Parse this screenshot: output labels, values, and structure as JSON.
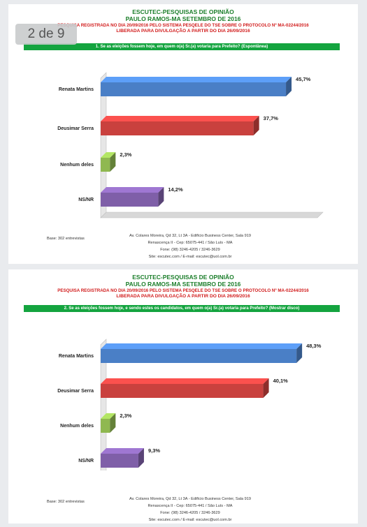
{
  "page_counter": "2 de 9",
  "panels": [
    {
      "title1": "ESCUTEC-PESQUISAS DE OPINIÃO",
      "title2": "PAULO RAMOS-MA SETEMBRO DE 2016",
      "registration": "PESQUISA REGISTRADA NO DIA 20/09/2016 PELO SISTEMA PESQELE DO TSE SOBRE O PROTOCOLO Nº MA-02244/2016",
      "release": "LIBERADA PARA DIVULGAÇÃO A PARTIR DO DIA 26/09/2016",
      "question": "1. Se as eleições fossem hoje, em quem o(a) Sr.(a) votaria para Prefeito? (Espontânea)",
      "base": "Base: 302 entrevistas",
      "address": [
        "Av. Colares Moreira, Qd 32, Lt 3A - Edifício Business Center, Sala 919",
        "Renascença II - Cep: 65075-441 / São Luís - MA",
        "Fone: (98) 3246-4205 / 3246-3629",
        "Site: escutec.com / E-mail: escutec@uol.com.br"
      ]
    },
    {
      "title1": "ESCUTEC-PESQUISAS DE OPINIÃO",
      "title2": "PAULO RAMOS-MA SETEMBRO DE 2016",
      "registration": "PESQUISA REGISTRADA NO DIA 20/09/2016 PELO SISTEMA PESQELE DO TSE SOBRE O PROTOCOLO Nº MA-02244/2016",
      "release": "LIBERADA PARA DIVULGAÇÃO A PARTIR DO DIA 26/09/2016",
      "question": "2. Se as eleições fossem hoje, e sendo estes os candidatos, em quem o(a) Sr.(a) votaria para Prefeito? (Mostrar disco)",
      "base": "Base: 302 entrevistas",
      "address": [
        "Av. Colares Moreira, Qd 32, Lt 3A - Edifício Business Center, Sala 919",
        "Renascença II - Cep: 65075-441 / São Luís - MA",
        "Fone: (98) 3246-4205 / 3246-3629",
        "Site: escutec.com / E-mail: escutec@uol.com.br"
      ]
    }
  ],
  "chart_data": [
    {
      "type": "bar",
      "orientation": "horizontal",
      "categories": [
        "Renata Martins",
        "Deusimar Serra",
        "Nenhum deles",
        "NS/NR"
      ],
      "values": [
        45.7,
        37.7,
        2.3,
        14.2
      ],
      "labels": [
        "45,7%",
        "37,7%",
        "2,3%",
        "14,2%"
      ],
      "colors": [
        "#4a7fc6",
        "#c9413e",
        "#8fb850",
        "#7f5fa8"
      ],
      "xlim": [
        0,
        50
      ]
    },
    {
      "type": "bar",
      "orientation": "horizontal",
      "categories": [
        "Renata Martins",
        "Deusimar Serra",
        "Nenhum deles",
        "NS/NR"
      ],
      "values": [
        48.3,
        40.1,
        2.3,
        9.3
      ],
      "labels": [
        "48,3%",
        "40,1%",
        "2,3%",
        "9,3%"
      ],
      "colors": [
        "#4a7fc6",
        "#c9413e",
        "#8fb850",
        "#7f5fa8"
      ],
      "xlim": [
        0,
        50
      ]
    }
  ]
}
